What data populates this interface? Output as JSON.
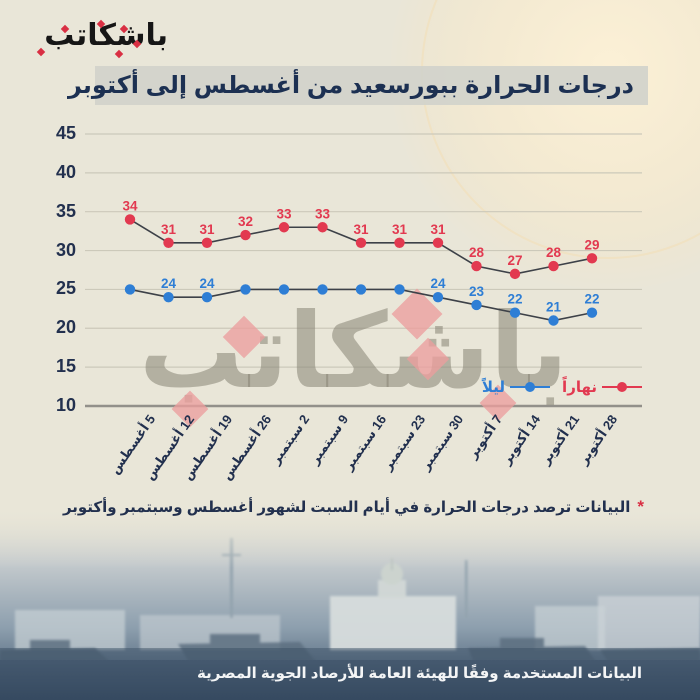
{
  "logo": {
    "text": "باشكاتب"
  },
  "title": {
    "text": "درجات الحرارة ببورسعيد من أغسطس إلى أكتوبر"
  },
  "watermark": {
    "text": "باشكاتب"
  },
  "chart_data": {
    "type": "line",
    "categories": [
      "5 أغسطس",
      "12 أغسطس",
      "19 أغسطس",
      "26 أغسطس",
      "2 سبتمبر",
      "9 سبتمبر",
      "16 سبتمبر",
      "23 سبتمبر",
      "30 سبتمبر",
      "7 أكتوبر",
      "14 أكتوبر",
      "21 أكتوبر",
      "28 أكتوبر"
    ],
    "series": [
      {
        "name": "نهاراً",
        "color": "#e23950",
        "values": [
          34,
          31,
          31,
          32,
          33,
          33,
          31,
          31,
          31,
          28,
          27,
          28,
          29
        ],
        "label_visible": [
          true,
          true,
          true,
          true,
          true,
          true,
          true,
          true,
          true,
          true,
          true,
          true,
          true
        ]
      },
      {
        "name": "ليلاً",
        "color": "#2e7ed5",
        "values": [
          25,
          24,
          24,
          25,
          25,
          25,
          25,
          25,
          24,
          23,
          22,
          21,
          22
        ],
        "label_visible": [
          false,
          true,
          true,
          false,
          false,
          false,
          false,
          false,
          true,
          true,
          true,
          true,
          true
        ]
      }
    ],
    "yticks": [
      45,
      40,
      35,
      30,
      25,
      20,
      15,
      10
    ],
    "ylim": [
      10,
      45
    ],
    "grid": true,
    "legend_position": "bottom-right",
    "line_color": "#3d4148"
  },
  "footnote": {
    "marker": "*",
    "text": "البيانات ترصد درجات الحرارة في أيام السبت لشهور أغسطس وسبتمبر وأكتوبر"
  },
  "credit": {
    "text": "البيانات المستخدمة وفقًا للهيئة العامة للأرصاد الجوية المصرية"
  },
  "colors": {
    "background": "#e9e6d8",
    "title_text": "#1c3052",
    "title_strip": "#d1d3cb",
    "axis_text": "#22304e",
    "day_series": "#e23950",
    "night_series": "#2e7ed5",
    "gridline": "#ccc9ba",
    "baseline": "#92908a",
    "credit_text": "#f4f5f6"
  }
}
